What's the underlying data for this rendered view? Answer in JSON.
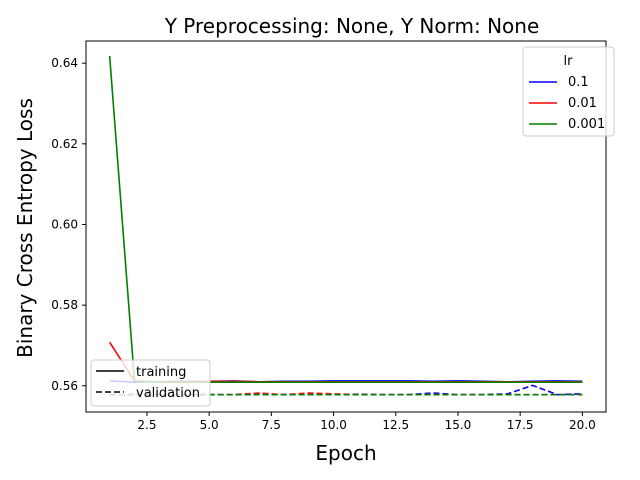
{
  "chart_data": {
    "type": "line",
    "title": "Y Preprocessing: None, Y Norm: None",
    "xlabel": "Epoch",
    "ylabel": "Binary Cross Entropy Loss",
    "xlim": [
      0.05,
      20.95
    ],
    "ylim": [
      0.5535,
      0.6455
    ],
    "x_ticks": [
      2.5,
      5.0,
      7.5,
      10.0,
      12.5,
      15.0,
      17.5,
      20.0
    ],
    "x_tick_labels": [
      "2.5",
      "5.0",
      "7.5",
      "10.0",
      "12.5",
      "15.0",
      "17.5",
      "20.0"
    ],
    "y_ticks": [
      0.56,
      0.58,
      0.6,
      0.62,
      0.64
    ],
    "y_tick_labels": [
      "0.56",
      "0.58",
      "0.60",
      "0.62",
      "0.64"
    ],
    "grid": false,
    "x": [
      1,
      2,
      3,
      4,
      5,
      6,
      7,
      8,
      9,
      10,
      11,
      12,
      13,
      14,
      15,
      16,
      17,
      18,
      19,
      20
    ],
    "series": [
      {
        "name": "0.1",
        "color": "#0000ff",
        "split": "training",
        "values": [
          0.5612,
          0.5609,
          0.561,
          0.5611,
          0.5611,
          0.5612,
          0.561,
          0.5611,
          0.5611,
          0.5612,
          0.5612,
          0.5612,
          0.5612,
          0.5611,
          0.5612,
          0.5611,
          0.561,
          0.5611,
          0.5612,
          0.5611
        ]
      },
      {
        "name": "0.1",
        "color": "#0000ff",
        "split": "validation",
        "values": [
          0.5578,
          0.5578,
          0.5578,
          0.5578,
          0.5578,
          0.5578,
          0.558,
          0.5578,
          0.558,
          0.5578,
          0.5579,
          0.5578,
          0.5578,
          0.5582,
          0.5578,
          0.5578,
          0.558,
          0.5601,
          0.5578,
          0.558
        ]
      },
      {
        "name": "0.01",
        "color": "#ff0000",
        "split": "training",
        "values": [
          0.5708,
          0.5612,
          0.561,
          0.561,
          0.5611,
          0.5611,
          0.561,
          0.561,
          0.561,
          0.561,
          0.561,
          0.561,
          0.561,
          0.561,
          0.561,
          0.561,
          0.561,
          0.561,
          0.561,
          0.561
        ]
      },
      {
        "name": "0.01",
        "color": "#ff0000",
        "split": "validation",
        "values": [
          0.5578,
          0.5578,
          0.5578,
          0.5578,
          0.5578,
          0.5578,
          0.5582,
          0.5578,
          0.5582,
          0.558,
          0.5578,
          0.5578,
          0.5578,
          0.5578,
          0.5578,
          0.5578,
          0.5578,
          0.5578,
          0.5578,
          0.5578
        ]
      },
      {
        "name": "0.001",
        "color": "#008000",
        "split": "training",
        "values": [
          0.6418,
          0.5612,
          0.5609,
          0.5609,
          0.5609,
          0.5609,
          0.5609,
          0.5609,
          0.5609,
          0.5609,
          0.5609,
          0.5609,
          0.5609,
          0.5609,
          0.5609,
          0.5609,
          0.5609,
          0.5609,
          0.5609,
          0.5609
        ]
      },
      {
        "name": "0.001",
        "color": "#008000",
        "split": "validation",
        "values": [
          0.5578,
          0.5578,
          0.5578,
          0.5578,
          0.5578,
          0.5578,
          0.5578,
          0.5578,
          0.5578,
          0.5578,
          0.5578,
          0.5578,
          0.5578,
          0.5578,
          0.5578,
          0.5578,
          0.5578,
          0.5578,
          0.5578,
          0.5578
        ]
      }
    ],
    "legend_lr": {
      "title": "lr",
      "placement": "top-right",
      "entries": [
        {
          "label": "0.1",
          "color": "#0000ff"
        },
        {
          "label": "0.01",
          "color": "#ff0000"
        },
        {
          "label": "0.001",
          "color": "#008000"
        }
      ]
    },
    "legend_split": {
      "placement": "bottom-left",
      "entries": [
        {
          "label": "training",
          "style": "solid",
          "color": "#000000"
        },
        {
          "label": "validation",
          "style": "dashed",
          "color": "#000000"
        }
      ]
    }
  }
}
